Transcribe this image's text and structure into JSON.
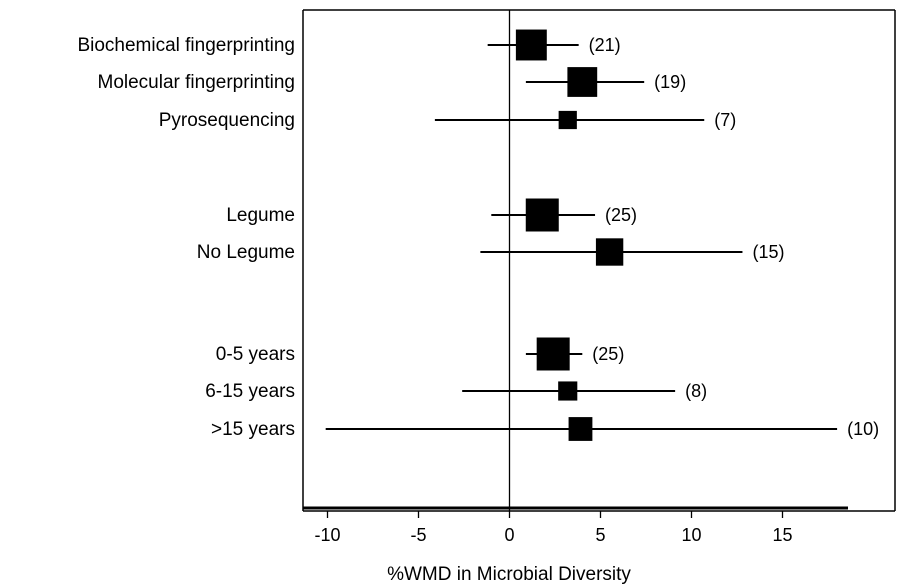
{
  "chart_data": {
    "type": "forest",
    "xlabel": "%WMD in Microbial Diversity",
    "xlim": [
      -11,
      22
    ],
    "xticks": [
      -10,
      -5,
      0,
      5,
      10,
      15
    ],
    "reference_line": 0,
    "rows": [
      {
        "label": "Biochemical fingerprinting",
        "n": "(21)",
        "n_value": 21,
        "mean": 1.2,
        "lo": -1.2,
        "hi": 3.8
      },
      {
        "label": "Molecular fingerprinting",
        "n": "(19)",
        "n_value": 19,
        "mean": 4.0,
        "lo": 0.9,
        "hi": 7.4
      },
      {
        "label": "Pyrosequencing",
        "n": "(7)",
        "n_value": 7,
        "mean": 3.2,
        "lo": -4.1,
        "hi": 10.7
      },
      {
        "label": "Legume",
        "n": "(25)",
        "n_value": 25,
        "mean": 1.8,
        "lo": -1.0,
        "hi": 4.7
      },
      {
        "label": "No Legume",
        "n": "(15)",
        "n_value": 15,
        "mean": 5.5,
        "lo": -1.6,
        "hi": 12.8
      },
      {
        "label": "0-5 years",
        "n": "(25)",
        "n_value": 25,
        "mean": 2.4,
        "lo": 0.9,
        "hi": 4.0
      },
      {
        "label": "6-15 years",
        "n": "(8)",
        "n_value": 8,
        "mean": 3.2,
        "lo": -2.6,
        "hi": 9.1
      },
      {
        "label": ">15 years",
        "n": "(10)",
        "n_value": 10,
        "mean": 3.9,
        "lo": -10.1,
        "hi": 18.0
      }
    ],
    "groups": [
      [
        0,
        1,
        2
      ],
      [
        3,
        4
      ],
      [
        5,
        6,
        7
      ]
    ]
  }
}
